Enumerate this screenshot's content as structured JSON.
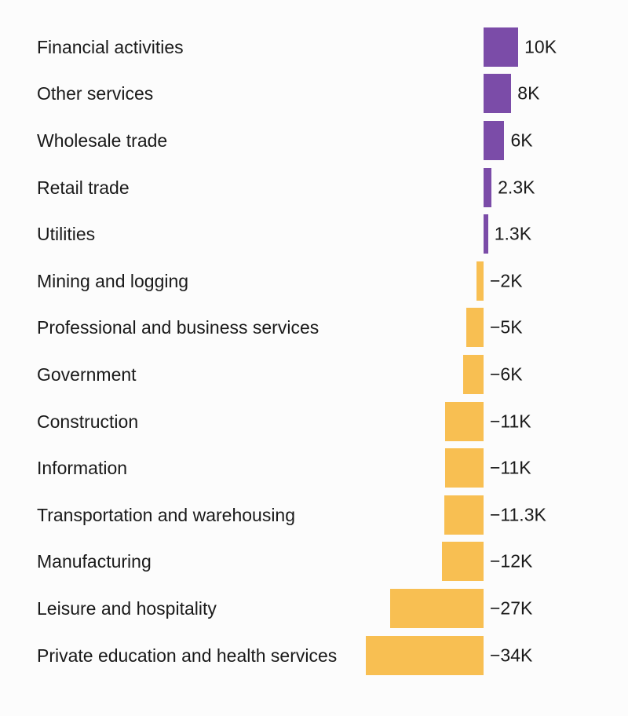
{
  "chart_data": {
    "type": "bar",
    "orientation": "horizontal",
    "categories": [
      "Financial activities",
      "Other services",
      "Wholesale trade",
      "Retail trade",
      "Utilities",
      "Mining and logging",
      "Professional and business services",
      "Government",
      "Construction",
      "Information",
      "Transportation and warehousing",
      "Manufacturing",
      "Leisure and hospitality",
      "Private education and health services"
    ],
    "values": [
      10,
      8,
      6,
      2.3,
      1.3,
      -2,
      -5,
      -6,
      -11,
      -11,
      -11.3,
      -12,
      -27,
      -34
    ],
    "value_labels": [
      "10K",
      "8K",
      "6K",
      "2.3K",
      "1.3K",
      "−2K",
      "−5K",
      "−6K",
      "−11K",
      "−11K",
      "−11.3K",
      "−12K",
      "−27K",
      "−34K"
    ],
    "positive_color": "#7b4ca8",
    "negative_color": "#f8bf52"
  }
}
